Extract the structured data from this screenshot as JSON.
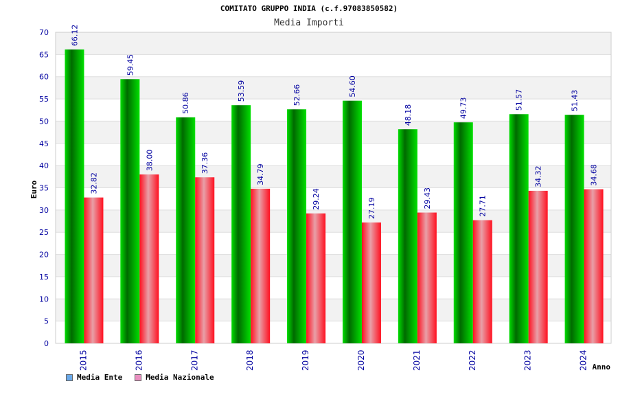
{
  "chart_data": {
    "type": "bar",
    "title": "COMITATO GRUPPO INDIA (c.f.97083850582)",
    "subtitle": "Media Importi",
    "xlabel": "Anno",
    "ylabel": "Euro",
    "ylim": [
      0,
      70
    ],
    "yticks": [
      0,
      5,
      10,
      15,
      20,
      25,
      30,
      35,
      40,
      45,
      50,
      55,
      60,
      65,
      70
    ],
    "grid": true,
    "legend_position": "bottom-left",
    "categories": [
      "2015",
      "2016",
      "2017",
      "2018",
      "2019",
      "2020",
      "2021",
      "2022",
      "2023",
      "2024"
    ],
    "series": [
      {
        "name": "Media Ente",
        "color": "#00c000",
        "legend_color": "#6aa9e9",
        "values": [
          66.12,
          59.45,
          50.86,
          53.59,
          52.66,
          54.6,
          48.18,
          49.73,
          51.57,
          51.43
        ],
        "labels": [
          "66.12",
          "59.45",
          "50.86",
          "53.59",
          "52.66",
          "54.60",
          "48.18",
          "49.73",
          "51.57",
          "51.43"
        ]
      },
      {
        "name": "Media Nazionale",
        "color": "#e81a1a",
        "legend_color": "#e98fc0",
        "values": [
          32.82,
          38.0,
          37.36,
          34.79,
          29.24,
          27.19,
          29.43,
          27.71,
          34.32,
          34.68
        ],
        "labels": [
          "32.82",
          "38.00",
          "37.36",
          "34.79",
          "29.24",
          "27.19",
          "29.43",
          "27.71",
          "34.32",
          "34.68"
        ]
      }
    ],
    "colors": {
      "axis_text": "#0000a0",
      "grid_band": "#f2f2f2",
      "grid_line": "#dddddd"
    }
  }
}
